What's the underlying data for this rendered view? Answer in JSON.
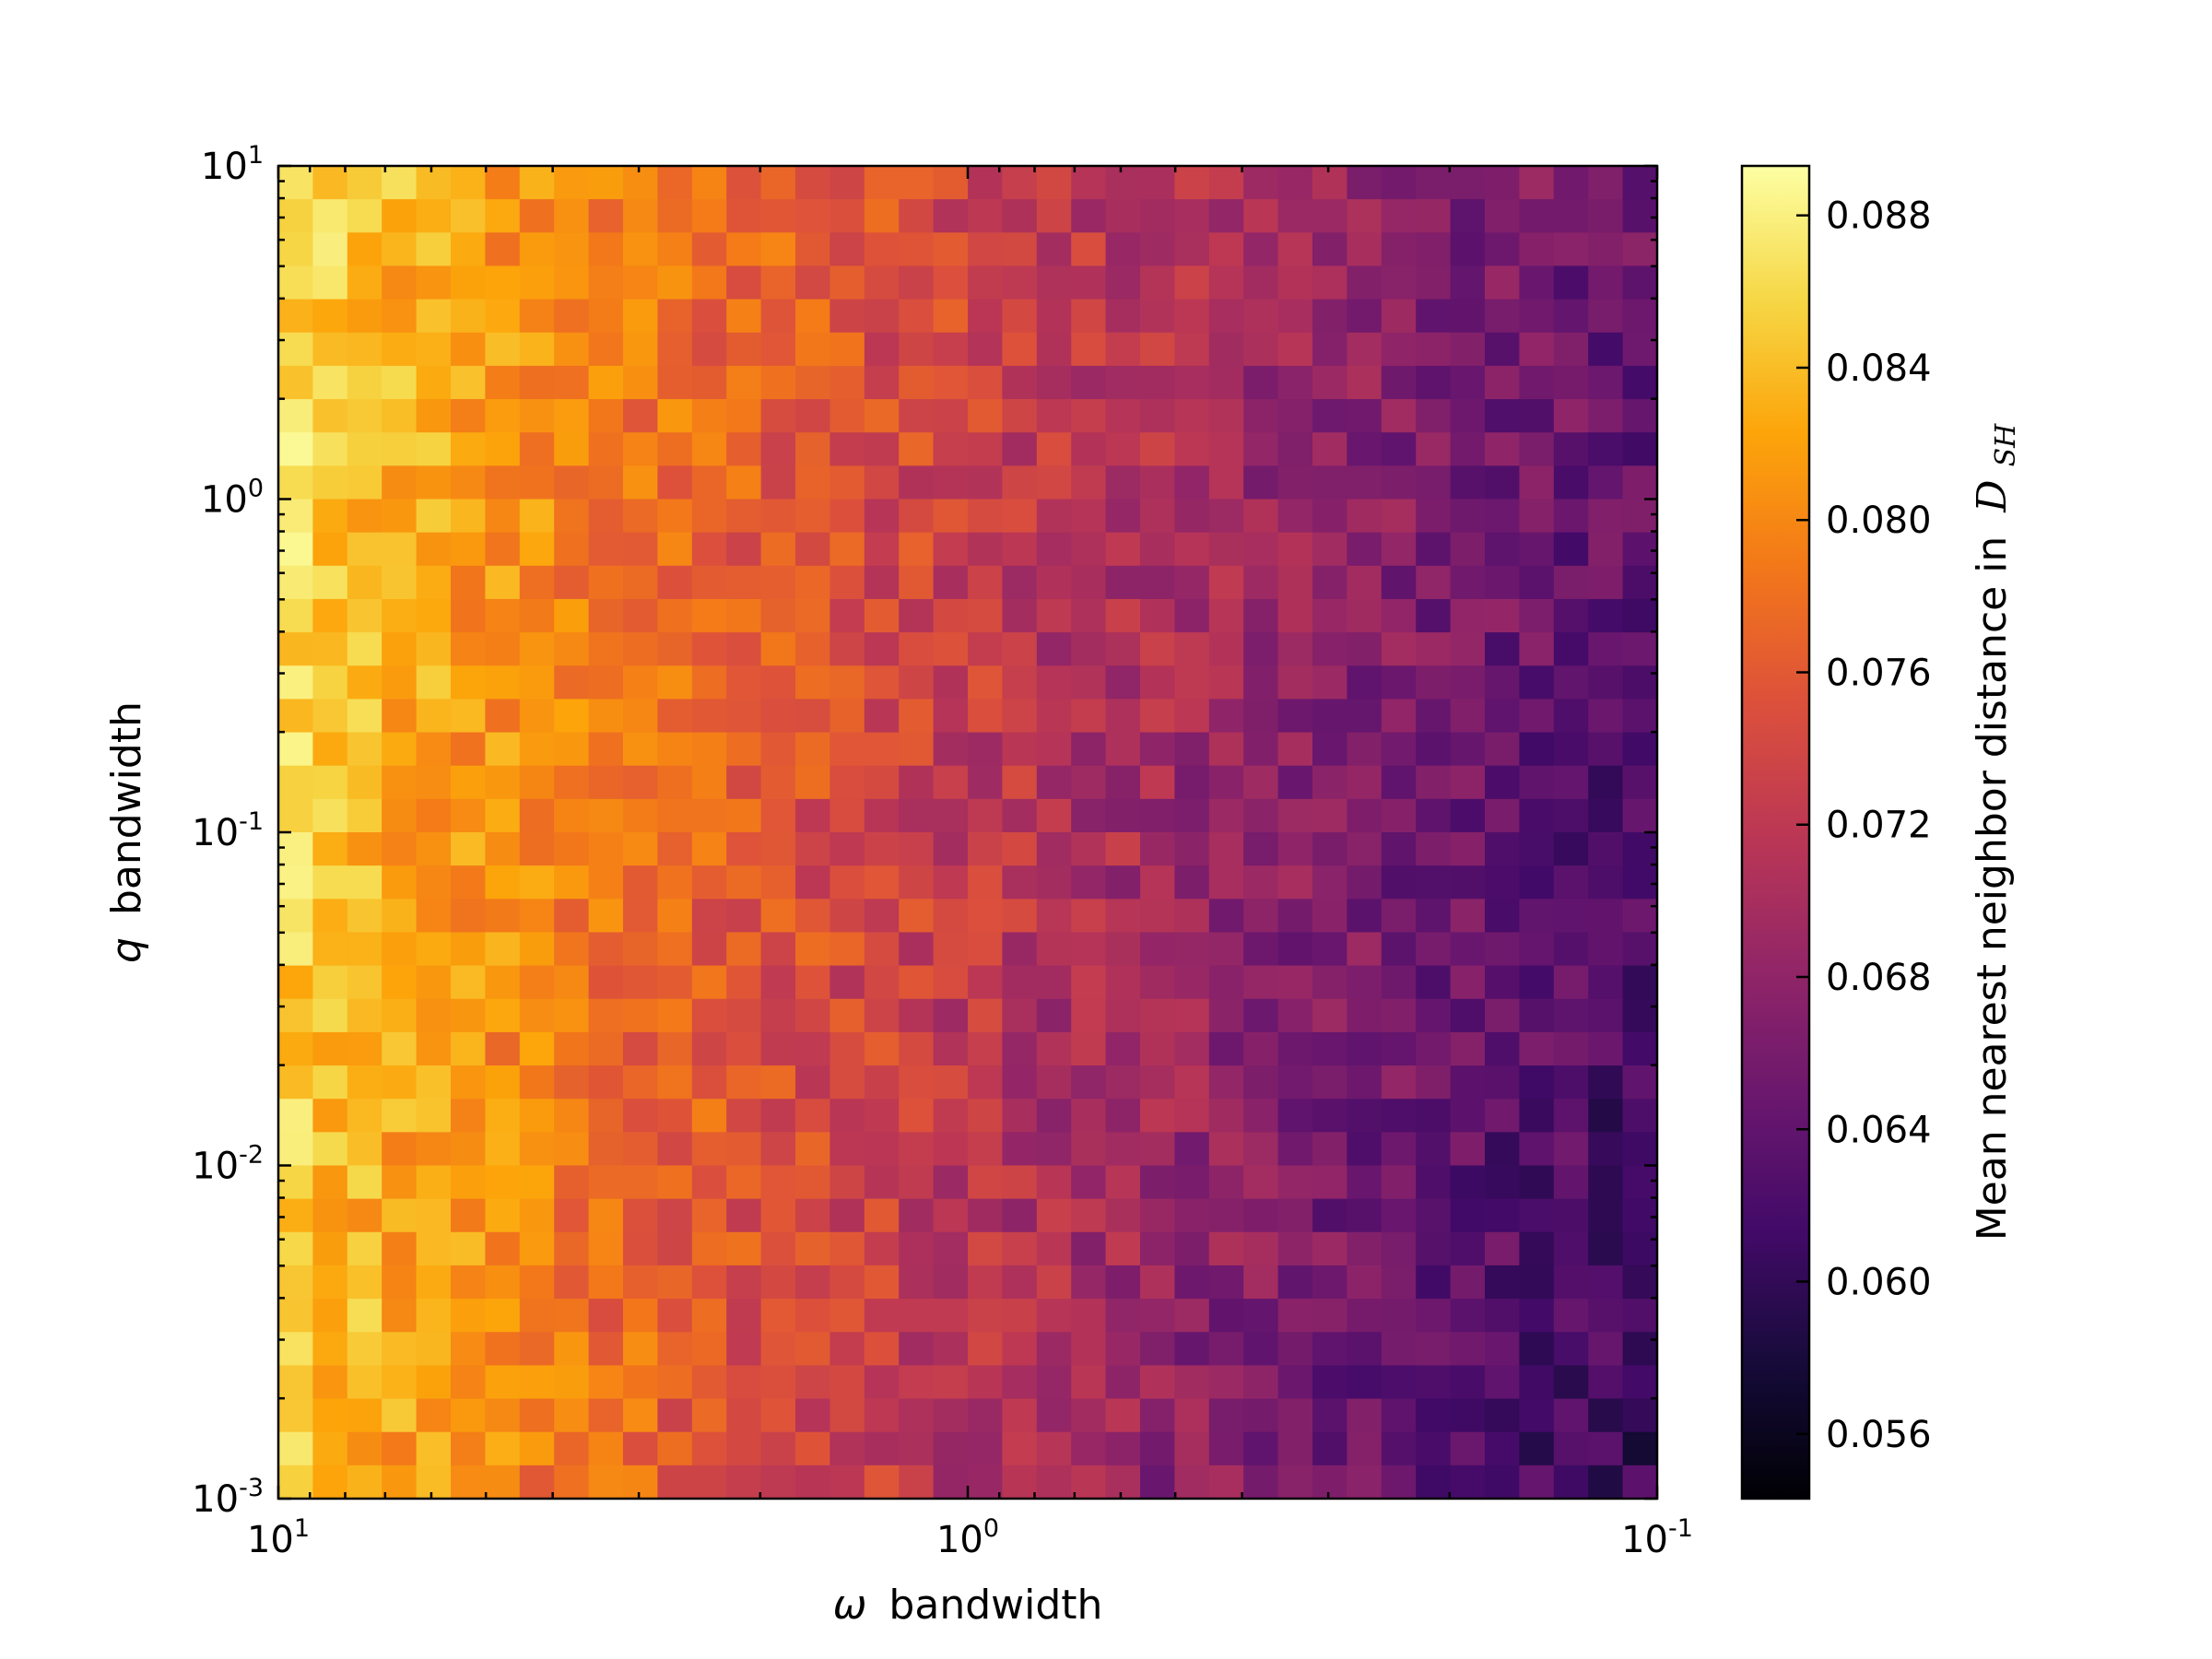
{
  "chart_data": {
    "type": "heatmap",
    "title": "",
    "xlabel": {
      "symbol": "ω",
      "text": "bandwidth"
    },
    "ylabel": {
      "symbol": "q",
      "text": "bandwidth"
    },
    "xscale": "log",
    "yscale": "log",
    "xlim": [
      10,
      0.1
    ],
    "ylim": [
      0.001,
      10
    ],
    "x_ticks": [
      {
        "base": "10",
        "exp": "1"
      },
      {
        "base": "10",
        "exp": "0"
      },
      {
        "base": "10",
        "exp": "-1"
      }
    ],
    "y_ticks": [
      {
        "base": "10",
        "exp": "-3"
      },
      {
        "base": "10",
        "exp": "-2"
      },
      {
        "base": "10",
        "exp": "-1"
      },
      {
        "base": "10",
        "exp": "0"
      },
      {
        "base": "10",
        "exp": "1"
      }
    ],
    "grid_cols": 40,
    "grid_rows": 40,
    "colormap": "inferno",
    "colorbar": {
      "label_text": "Mean nearest neighbor distance in",
      "label_symbol": "D",
      "label_subscript": "SH",
      "vmin": 0.0543,
      "vmax": 0.0893,
      "ticks": [
        "0.056",
        "0.060",
        "0.064",
        "0.068",
        "0.072",
        "0.076",
        "0.080",
        "0.084",
        "0.088"
      ]
    },
    "trend": "Distance is highest (~0.088) at large ω bandwidth (left, ~10) and decreases toward ~0.056 at small ω bandwidth (right, ~0.1); weak dependence on q bandwidth, slightly higher at large q.",
    "samples": [
      {
        "omega": 10,
        "q": 10,
        "value": 0.087
      },
      {
        "omega": 3,
        "q": 1,
        "value": 0.079
      },
      {
        "omega": 1,
        "q": 0.1,
        "value": 0.069
      },
      {
        "omega": 0.3,
        "q": 0.01,
        "value": 0.062
      },
      {
        "omega": 0.1,
        "q": 0.001,
        "value": 0.057
      },
      {
        "omega": 0.1,
        "q": 10,
        "value": 0.066
      }
    ]
  }
}
